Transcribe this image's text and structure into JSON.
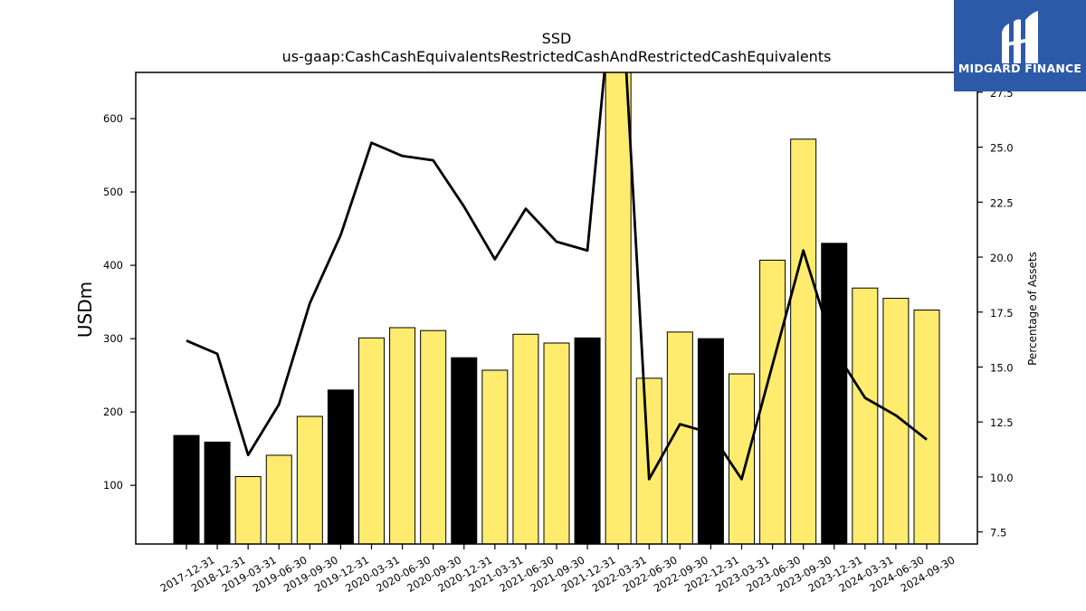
{
  "chart_data": {
    "type": "bar",
    "title": "SSD",
    "subtitle": "us-gaap:CashCashEquivalentsRestrictedCashAndRestrictedCashEquivalents",
    "ylabel": "USDm",
    "y2label": "Percentage of Assets",
    "ylim": [
      20,
      663
    ],
    "y2lim": [
      6.95,
      28.4
    ],
    "yticks": [
      100,
      200,
      300,
      400,
      500,
      600
    ],
    "y2ticks": [
      7.5,
      10.0,
      12.5,
      15.0,
      17.5,
      20.0,
      22.5,
      25.0,
      27.5
    ],
    "categories": [
      "2017-12-31",
      "2018-12-31",
      "2019-03-31",
      "2019-06-30",
      "2019-09-30",
      "2019-12-31",
      "2020-03-31",
      "2020-06-30",
      "2020-09-30",
      "2020-12-31",
      "2021-03-31",
      "2021-06-30",
      "2021-09-30",
      "2021-12-31",
      "2022-03-31",
      "2022-06-30",
      "2022-09-30",
      "2022-12-31",
      "2023-03-31",
      "2023-06-30",
      "2023-09-30",
      "2023-12-31",
      "2024-03-31",
      "2024-06-30",
      "2024-09-30"
    ],
    "series": [
      {
        "type": "bar",
        "values": [
          168,
          159,
          112,
          141,
          194,
          230,
          301,
          315,
          311,
          274,
          257,
          306,
          294,
          301,
          700,
          246,
          309,
          300,
          252,
          407,
          572,
          430,
          369,
          355,
          339
        ],
        "colors": [
          "#000000",
          "#000000",
          "#ffec6e",
          "#ffec6e",
          "#ffec6e",
          "#000000",
          "#ffec6e",
          "#ffec6e",
          "#ffec6e",
          "#000000",
          "#ffec6e",
          "#ffec6e",
          "#ffec6e",
          "#000000",
          "#ffec6e",
          "#ffec6e",
          "#ffec6e",
          "#000000",
          "#ffec6e",
          "#ffec6e",
          "#ffec6e",
          "#000000",
          "#ffec6e",
          "#ffec6e",
          "#ffec6e"
        ]
      },
      {
        "type": "line",
        "axis": "right",
        "values": [
          16.2,
          15.6,
          11.0,
          13.3,
          17.9,
          21.0,
          25.2,
          24.6,
          24.4,
          22.3,
          19.9,
          22.2,
          20.7,
          20.3,
          35.0,
          9.9,
          12.4,
          12.0,
          9.9,
          15.1,
          20.3,
          15.8,
          13.6,
          12.8,
          11.7
        ],
        "color": "#000000"
      }
    ],
    "grid": false
  },
  "logo": {
    "text": "MIDGARD FINANCE",
    "background": "#2d5aa8"
  }
}
